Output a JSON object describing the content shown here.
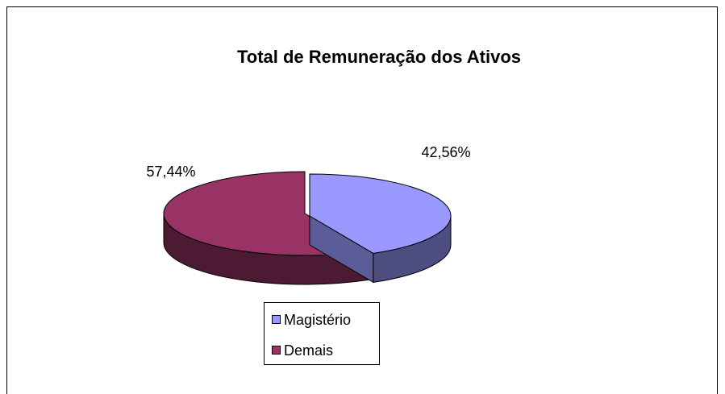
{
  "chart_data": {
    "type": "pie",
    "title": "Total de Remuneração dos Ativos",
    "categories": [
      "Magistério",
      "Demais"
    ],
    "values": [
      42.56,
      57.44
    ],
    "value_labels": [
      "42,56%",
      "57,44%"
    ],
    "colors": [
      "#9999ff",
      "#993366"
    ],
    "legend": "bottom"
  }
}
